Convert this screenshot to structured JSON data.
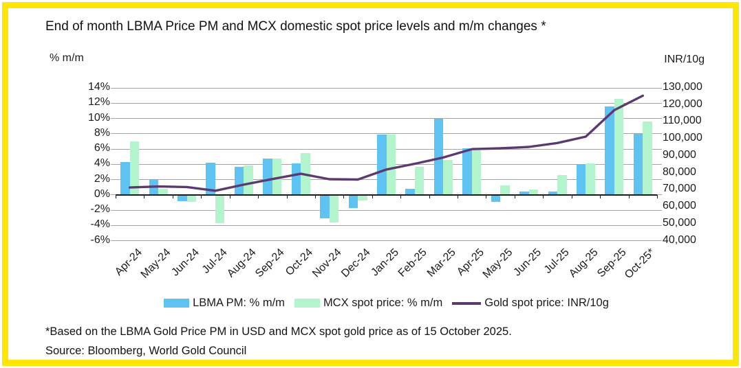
{
  "frame": {
    "border_color": "#FFE600"
  },
  "title": "End of month LBMA Price PM and MCX domestic spot price levels and m/m changes *",
  "left_axis_title": "% m/m",
  "right_axis_title": "INR/10g",
  "footnote": "*Based on the LBMA Gold Price PM in USD and MCX spot gold price as of 15 October 2025.",
  "source": "Source: Bloomberg, World Gold Council",
  "legend": [
    {
      "label": "LBMA PM: % m/m",
      "color": "#5EC2F3",
      "type": "bar"
    },
    {
      "label": "MCX spot price: % m/m",
      "color": "#B2F4CB",
      "type": "bar"
    },
    {
      "label": "Gold spot price: INR/10g",
      "color": "#5B3A70",
      "type": "line"
    }
  ],
  "chart_data": {
    "type": "bar",
    "subtype": "grouped bars with secondary-axis line",
    "categories": [
      "Apr-24",
      "May-24",
      "Jun-24",
      "Jul-24",
      "Aug-24",
      "Sep-24",
      "Oct-24",
      "Nov-24",
      "Dec-24",
      "Jan-25",
      "Feb-25",
      "Mar-25",
      "Apr-25",
      "May-25",
      "Jun-25",
      "Jul-25",
      "Aug-25",
      "Sep-25",
      "Oct-25*"
    ],
    "series": [
      {
        "name": "LBMA PM: % m/m",
        "type": "bar",
        "axis": "left",
        "color": "#5EC2F3",
        "values": [
          4.3,
          2.0,
          -0.8,
          4.2,
          3.7,
          4.7,
          4.1,
          -3.1,
          -1.7,
          7.9,
          0.8,
          10.0,
          6.1,
          -0.9,
          0.4,
          0.4,
          4.0,
          11.6,
          8.0
        ]
      },
      {
        "name": "MCX spot price: % m/m",
        "type": "bar",
        "axis": "left",
        "color": "#B2F4CB",
        "values": [
          7.0,
          0.8,
          -0.9,
          -3.7,
          3.8,
          4.7,
          5.5,
          -3.6,
          -0.7,
          7.9,
          3.7,
          4.6,
          5.8,
          1.2,
          0.7,
          2.6,
          4.1,
          12.6,
          9.6
        ]
      },
      {
        "name": "Gold spot price: INR/10g",
        "type": "line",
        "axis": "right",
        "color": "#5B3A70",
        "values": [
          71300,
          71900,
          71600,
          69400,
          73000,
          76300,
          79400,
          76200,
          76000,
          81900,
          85300,
          89000,
          93900,
          94400,
          95200,
          97500,
          101300,
          116900,
          125400
        ]
      }
    ],
    "left_axis": {
      "label": "% m/m",
      "min": -6,
      "max": 14,
      "step": 2,
      "format": "percent",
      "ticks": [
        "14%",
        "12%",
        "10%",
        "8%",
        "6%",
        "4%",
        "2%",
        "0%",
        "-2%",
        "-4%",
        "-6%"
      ]
    },
    "right_axis": {
      "label": "INR/10g",
      "min": 40000,
      "max": 130000,
      "step": 10000,
      "ticks": [
        "130,000",
        "120,000",
        "110,000",
        "100,000",
        "90,000",
        "80,000",
        "70,000",
        "60,000",
        "50,000",
        "40,000"
      ]
    },
    "grid": true,
    "gridline_color": "#A3A3A3",
    "legend_position": "bottom"
  }
}
